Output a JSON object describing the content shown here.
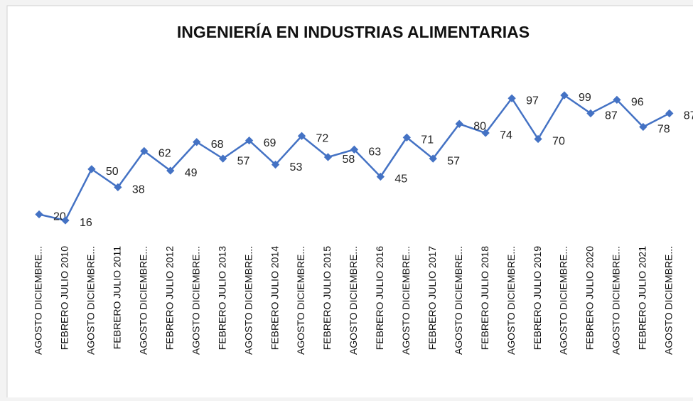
{
  "chart_data": {
    "type": "line",
    "title": "INGENIERÍA EN INDUSTRIAS ALIMENTARIAS",
    "categories": [
      "AGOSTO  DICIEMBRE...",
      "FEBRERO JULIO 2010",
      "AGOSTO  DICIEMBRE...",
      "FEBRERO JULIO 2011",
      "AGOSTO  DICIEMBRE...",
      "FEBRERO JULIO 2012",
      "AGOSTO  DICIEMBRE...",
      "FEBRERO JULIO 2013",
      "AGOSTO  DICIEMBRE...",
      "FEBRERO JULIO 2014",
      "AGOSTO  DICIEMBRE...",
      "FEBRERO JULIO 2015",
      "AGOSTO  DICIEMBRE...",
      "FEBRERO JULIO 2016",
      "AGOSTO  DICIEMBRE...",
      "FEBRERO JULIO 2017",
      "AGOSTO  DICIEMBRE...",
      "FEBRERO JULIO 2018",
      "AGOSTO  DICIEMBRE...",
      "FEBRERO JULIO 2019",
      "AGOSTO  DICIEMBRE...",
      "FEBRERO JULIO 2020",
      "AGOSTO  DICIEMBRE...",
      "FEBRERO JULIO 2021",
      "AGOSTO  DICIEMBRE..."
    ],
    "values": [
      20,
      16,
      50,
      38,
      62,
      49,
      68,
      57,
      69,
      53,
      72,
      58,
      63,
      45,
      71,
      57,
      80,
      74,
      97,
      70,
      99,
      87,
      96,
      78,
      87
    ],
    "color": "#4472c4"
  }
}
